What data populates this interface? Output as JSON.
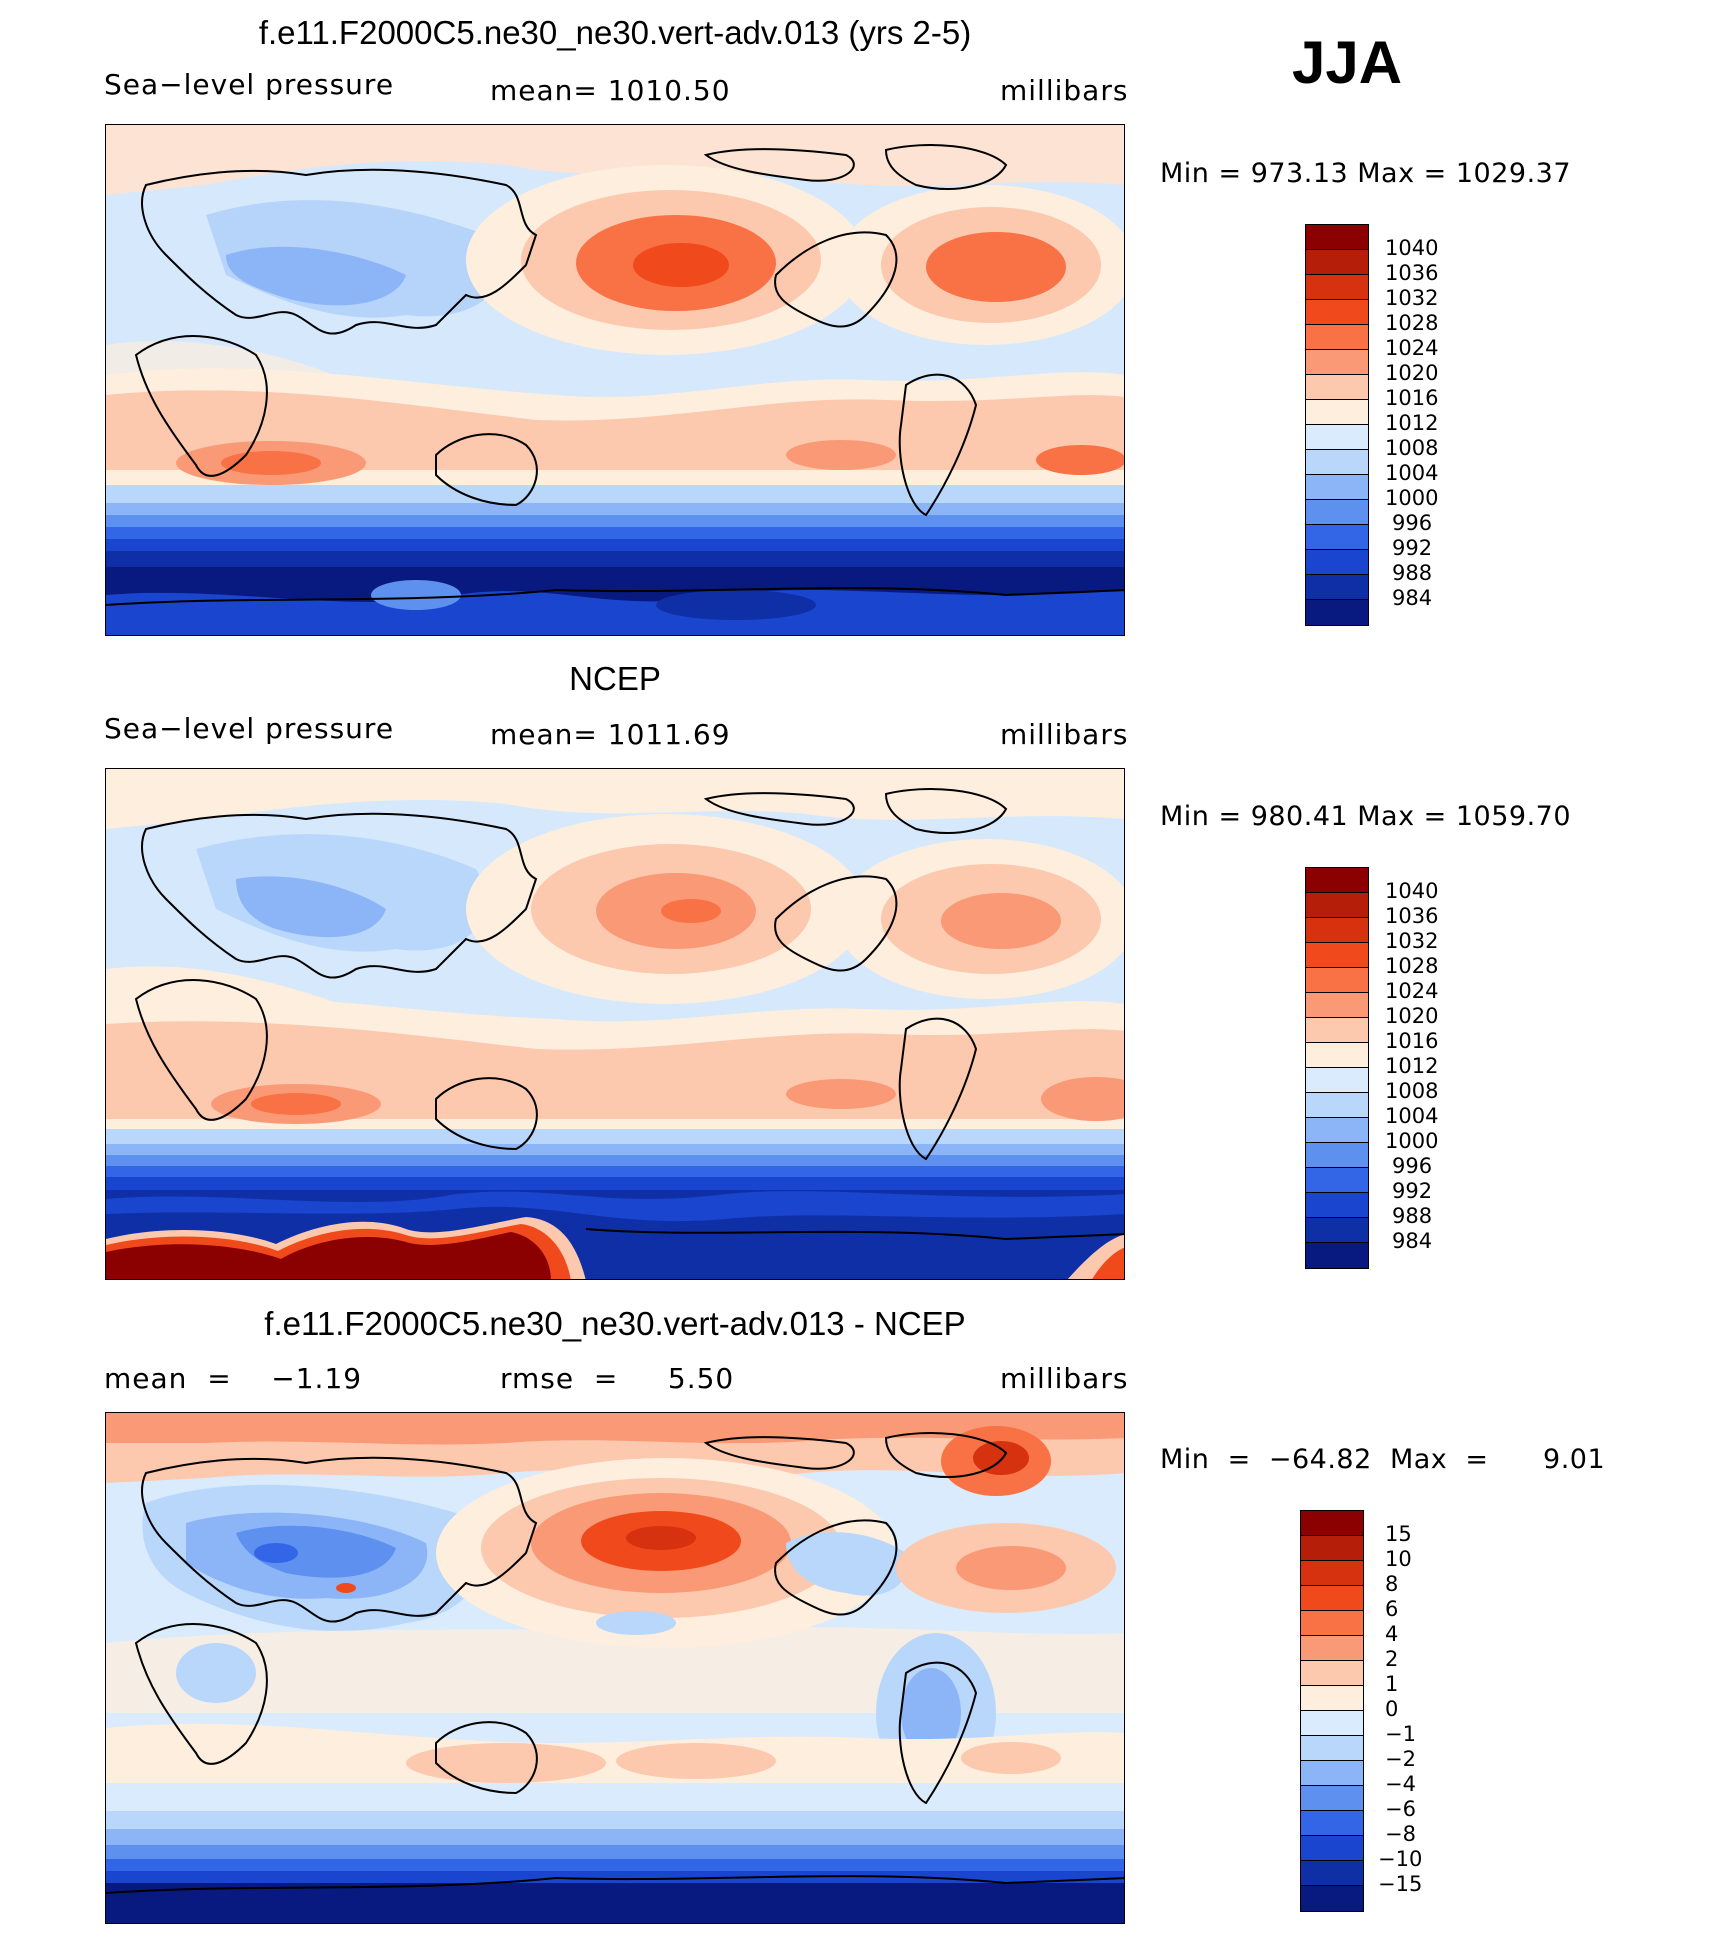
{
  "season": "JJA",
  "legend_colors": [
    "#8b0000",
    "#b51f0a",
    "#d63210",
    "#f04a1c",
    "#f87246",
    "#fa9976",
    "#fcc8ae",
    "#fdeede",
    "#d9ebfc",
    "#b8d7fb",
    "#8cb5f8",
    "#5e90f0",
    "#3366e6",
    "#1a45cf",
    "#0e2fa6",
    "#081a80"
  ],
  "panels": [
    {
      "title": "f.e11.F2000C5.ne30_ne30.vert-adv.013 (yrs 2-5)",
      "left": "Sea−level pressure",
      "center": "mean=  1010.50",
      "right": "millibars",
      "minmax": "Min  =  973.13  Max  =  1029.37",
      "legend_labels": [
        "1040",
        "1036",
        "1032",
        "1028",
        "1024",
        "1020",
        "1016",
        "1012",
        "1008",
        "1004",
        "1000",
        "996",
        "992",
        "988",
        "984"
      ]
    },
    {
      "title": "NCEP",
      "left": "Sea−level pressure",
      "center": "mean=  1011.69",
      "right": "millibars",
      "minmax": "Min  =  980.41  Max  =  1059.70",
      "legend_labels": [
        "1040",
        "1036",
        "1032",
        "1028",
        "1024",
        "1020",
        "1016",
        "1012",
        "1008",
        "1004",
        "1000",
        "996",
        "992",
        "988",
        "984"
      ]
    },
    {
      "title": "f.e11.F2000C5.ne30_ne30.vert-adv.013 - NCEP",
      "left": "mean  =    −1.19",
      "center": "rmse  =     5.50",
      "right": "millibars",
      "minmax": "Min  =  −64.82  Max  =      9.01",
      "legend_labels": [
        "15",
        "10",
        "8",
        "6",
        "4",
        "2",
        "1",
        "0",
        "−1",
        "−2",
        "−4",
        "−6",
        "−8",
        "−10",
        "−15"
      ]
    }
  ]
}
